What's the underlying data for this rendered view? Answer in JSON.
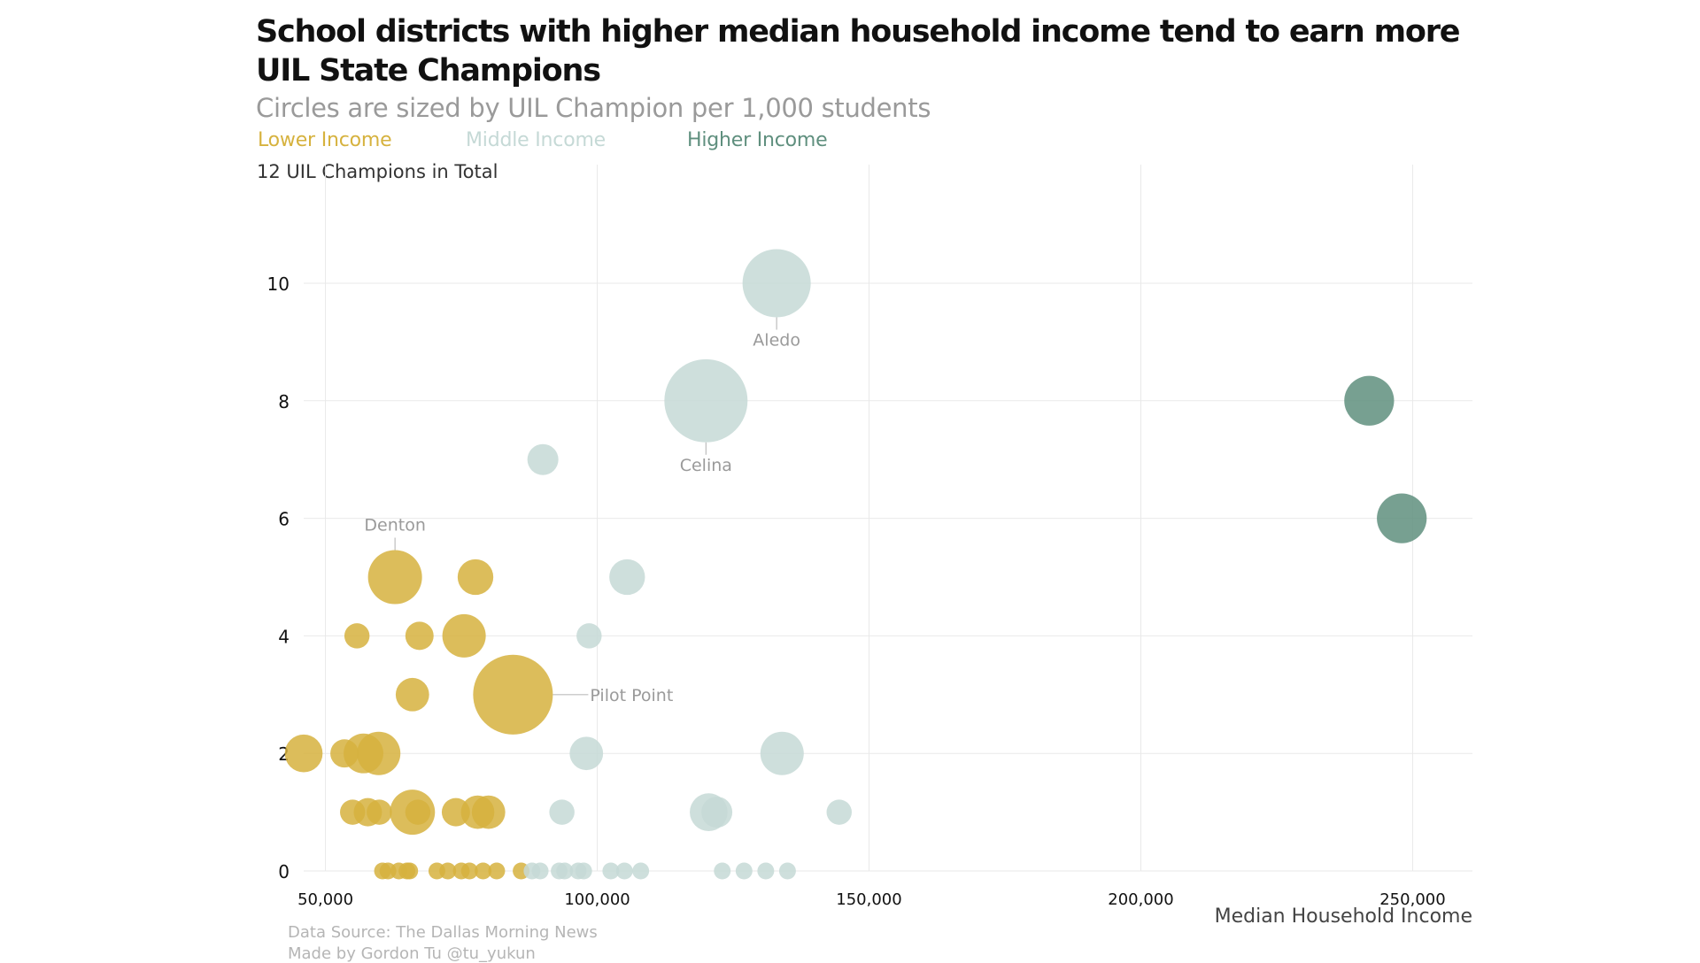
{
  "title": "School districts with higher median household income tend to earn more UIL State Champions",
  "subtitle": "Circles are sized by UIL Champion per 1,000 students",
  "legend": [
    {
      "label": "Lower Income",
      "color": "#d6b23e"
    },
    {
      "label": "Middle Income",
      "color": "#c5d9d6"
    },
    {
      "label": "Higher Income",
      "color": "#5f8f7e"
    }
  ],
  "y_unit_label": "12 UIL Champions in Total",
  "source": {
    "line1": "Data Source: The Dallas Morning News",
    "line2": "Made by Gordon Tu @tu_yukun"
  },
  "chart_data": {
    "type": "scatter",
    "title": "School districts with higher median household income tend to earn more UIL State Champions",
    "subtitle": "Circles are sized by UIL Champion per 1,000 students",
    "xlabel": "Median Household Income",
    "ylabel": "12 UIL Champions in Total",
    "xlim": [
      46000,
      261000
    ],
    "ylim": [
      0,
      10
    ],
    "x_ticks": [
      50000,
      100000,
      150000,
      200000,
      250000
    ],
    "x_tick_labels": [
      "50,000",
      "100,000",
      "150,000",
      "200,000",
      "250,000"
    ],
    "y_ticks": [
      0,
      2,
      4,
      6,
      8,
      10
    ],
    "y_tick_labels": [
      "0",
      "2",
      "4",
      "6",
      "8",
      "10"
    ],
    "grid": true,
    "legend_position": "top-left",
    "series": [
      {
        "name": "Lower Income",
        "color": "#d6b23e",
        "points": [
          {
            "x": 46000,
            "y": 2,
            "size": 0.4
          },
          {
            "x": 53500,
            "y": 2,
            "size": 0.2
          },
          {
            "x": 57000,
            "y": 2,
            "size": 0.45
          },
          {
            "x": 59800,
            "y": 2,
            "size": 0.55
          },
          {
            "x": 55000,
            "y": 1,
            "size": 0.15
          },
          {
            "x": 57800,
            "y": 1,
            "size": 0.2
          },
          {
            "x": 59900,
            "y": 1,
            "size": 0.15
          },
          {
            "x": 66000,
            "y": 1,
            "size": 0.6
          },
          {
            "x": 67000,
            "y": 1,
            "size": 0.15
          },
          {
            "x": 74000,
            "y": 1,
            "size": 0.2
          },
          {
            "x": 78000,
            "y": 1,
            "size": 0.3
          },
          {
            "x": 80000,
            "y": 1,
            "size": 0.3
          },
          {
            "x": 55800,
            "y": 4,
            "size": 0.15
          },
          {
            "x": 67300,
            "y": 4,
            "size": 0.2
          },
          {
            "x": 75500,
            "y": 4,
            "size": 0.55
          },
          {
            "x": 62800,
            "y": 5,
            "size": 0.9,
            "label": "Denton"
          },
          {
            "x": 77600,
            "y": 5,
            "size": 0.35
          },
          {
            "x": 66000,
            "y": 3,
            "size": 0.3
          },
          {
            "x": 84500,
            "y": 3,
            "size": 2.1,
            "label": "Pilot Point"
          },
          {
            "x": 60500,
            "y": 0,
            "size": 0.05
          },
          {
            "x": 61500,
            "y": 0,
            "size": 0.05
          },
          {
            "x": 63500,
            "y": 0,
            "size": 0.05
          },
          {
            "x": 65000,
            "y": 0,
            "size": 0.05
          },
          {
            "x": 65500,
            "y": 0,
            "size": 0.05
          },
          {
            "x": 70500,
            "y": 0,
            "size": 0.05
          },
          {
            "x": 72500,
            "y": 0,
            "size": 0.05
          },
          {
            "x": 75000,
            "y": 0,
            "size": 0.05
          },
          {
            "x": 76500,
            "y": 0,
            "size": 0.05
          },
          {
            "x": 79000,
            "y": 0,
            "size": 0.05
          },
          {
            "x": 81500,
            "y": 0,
            "size": 0.05
          },
          {
            "x": 86000,
            "y": 0,
            "size": 0.05
          }
        ]
      },
      {
        "name": "Middle Income",
        "color": "#c5d9d6",
        "points": [
          {
            "x": 133000,
            "y": 10,
            "size": 1.5,
            "label": "Aledo"
          },
          {
            "x": 120000,
            "y": 8,
            "size": 2.3,
            "label": "Celina"
          },
          {
            "x": 90000,
            "y": 7,
            "size": 0.25
          },
          {
            "x": 105500,
            "y": 5,
            "size": 0.35
          },
          {
            "x": 98500,
            "y": 4,
            "size": 0.15
          },
          {
            "x": 98000,
            "y": 2,
            "size": 0.3
          },
          {
            "x": 134000,
            "y": 2,
            "size": 0.55
          },
          {
            "x": 93500,
            "y": 1,
            "size": 0.15
          },
          {
            "x": 120500,
            "y": 1,
            "size": 0.4
          },
          {
            "x": 122000,
            "y": 1,
            "size": 0.25
          },
          {
            "x": 144500,
            "y": 1,
            "size": 0.15
          },
          {
            "x": 88000,
            "y": 0,
            "size": 0.05
          },
          {
            "x": 89500,
            "y": 0,
            "size": 0.05
          },
          {
            "x": 93000,
            "y": 0,
            "size": 0.05
          },
          {
            "x": 94000,
            "y": 0,
            "size": 0.05
          },
          {
            "x": 96500,
            "y": 0,
            "size": 0.05
          },
          {
            "x": 97500,
            "y": 0,
            "size": 0.05
          },
          {
            "x": 102500,
            "y": 0,
            "size": 0.05
          },
          {
            "x": 105000,
            "y": 0,
            "size": 0.05
          },
          {
            "x": 108000,
            "y": 0,
            "size": 0.05
          },
          {
            "x": 123000,
            "y": 0,
            "size": 0.05
          },
          {
            "x": 127000,
            "y": 0,
            "size": 0.05
          },
          {
            "x": 131000,
            "y": 0,
            "size": 0.05
          },
          {
            "x": 135000,
            "y": 0,
            "size": 0.05
          }
        ]
      },
      {
        "name": "Higher Income",
        "color": "#5f8f7e",
        "points": [
          {
            "x": 242000,
            "y": 8,
            "size": 0.75
          },
          {
            "x": 248000,
            "y": 6,
            "size": 0.75
          }
        ]
      }
    ]
  }
}
